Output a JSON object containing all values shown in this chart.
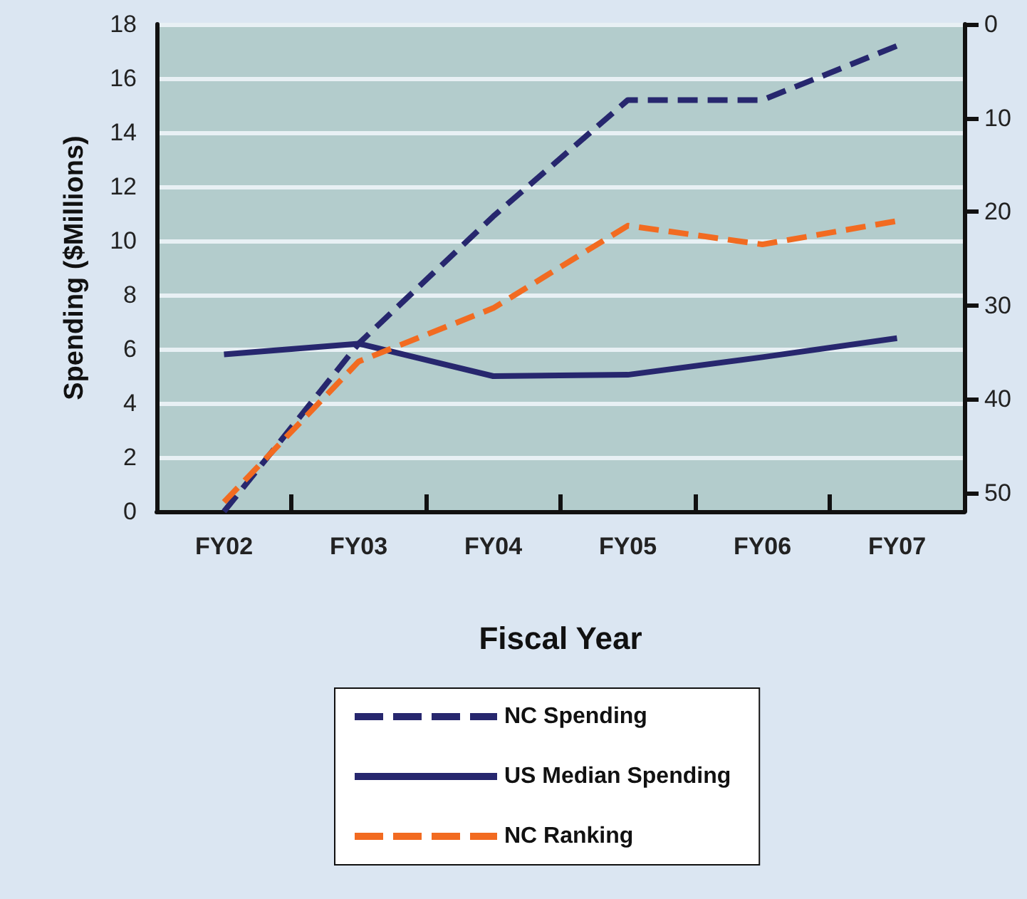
{
  "chart_data": {
    "type": "line",
    "xlabel": "Fiscal Year",
    "ylabel": "Spending ($Millions)",
    "categories": [
      "FY02",
      "FY03",
      "FY04",
      "FY05",
      "FY06",
      "FY07"
    ],
    "series": [
      {
        "name": "NC Spending",
        "color": "#27276e",
        "line_style": "dashed",
        "values": [
          0,
          6.2,
          10.9,
          15.2,
          15.2,
          17.2
        ]
      },
      {
        "name": "US Median Spending",
        "color": "#27276e",
        "line_style": "solid",
        "values": [
          5.8,
          6.2,
          5.0,
          5.05,
          5.7,
          6.4
        ]
      },
      {
        "name": "NC Ranking",
        "color": "#f26b21",
        "line_style": "dashed",
        "axis": "y2",
        "values": [
          51,
          36,
          30.3,
          21.5,
          23.5,
          21
        ]
      }
    ],
    "ylim": [
      0,
      18
    ],
    "yticks": [
      0,
      2,
      4,
      6,
      8,
      10,
      12,
      14,
      16,
      18
    ],
    "y2lim": [
      52,
      0
    ],
    "y2ticks": [
      0,
      10,
      20,
      30,
      40,
      50
    ],
    "grid": "y",
    "legend": "bottom",
    "marker": "none"
  }
}
